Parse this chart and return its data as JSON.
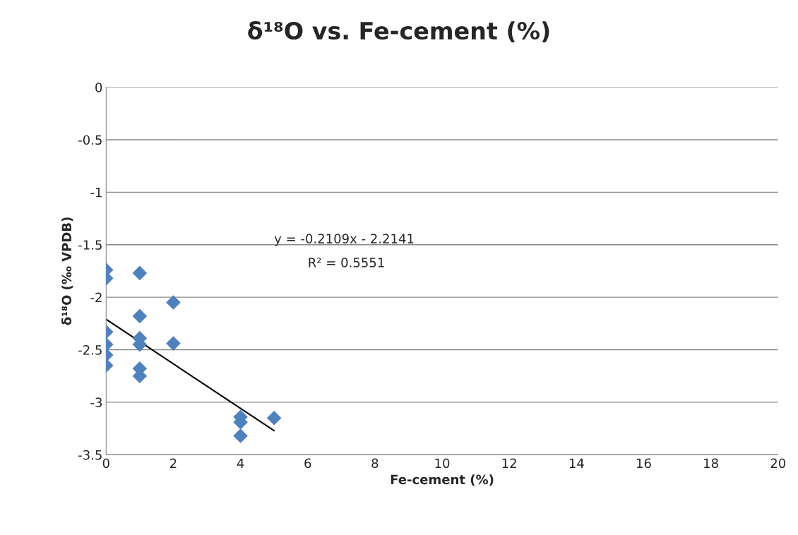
{
  "chart_data": {
    "type": "scatter",
    "title": "δ¹⁸O vs. Fe-cement (%)",
    "xlabel": "Fe-cement (%)",
    "ylabel": "δ¹⁸O (‰ VPDB)",
    "xlim": [
      0,
      20
    ],
    "xticks": [
      0,
      2,
      4,
      6,
      8,
      10,
      12,
      14,
      16,
      18,
      20
    ],
    "ylim": [
      -3.5,
      0
    ],
    "yticks": [
      -3.5,
      -3,
      -2.5,
      -2,
      -1.5,
      -1,
      -0.5,
      0
    ],
    "grid": "y",
    "legend": false,
    "series": [
      {
        "marker": "diamond",
        "color": "#4f81bd",
        "x": [
          0,
          0,
          0,
          0,
          0,
          0,
          1,
          1,
          1,
          1,
          1,
          1,
          2,
          2,
          4,
          4,
          4,
          5
        ],
        "values": [
          -1.74,
          -1.82,
          -2.33,
          -2.45,
          -2.55,
          -2.65,
          -1.77,
          -2.18,
          -2.39,
          -2.45,
          -2.68,
          -2.75,
          -2.05,
          -2.44,
          -3.14,
          -3.19,
          -3.32,
          -3.15
        ]
      },
      {
        "type": "line",
        "marker": "none",
        "color": "#000000",
        "x": [
          0,
          5
        ],
        "values": [
          -2.21,
          -3.27
        ]
      }
    ],
    "annotations": [
      "y = -0.2109x - 2.2141",
      "R² = 0.5551"
    ]
  }
}
